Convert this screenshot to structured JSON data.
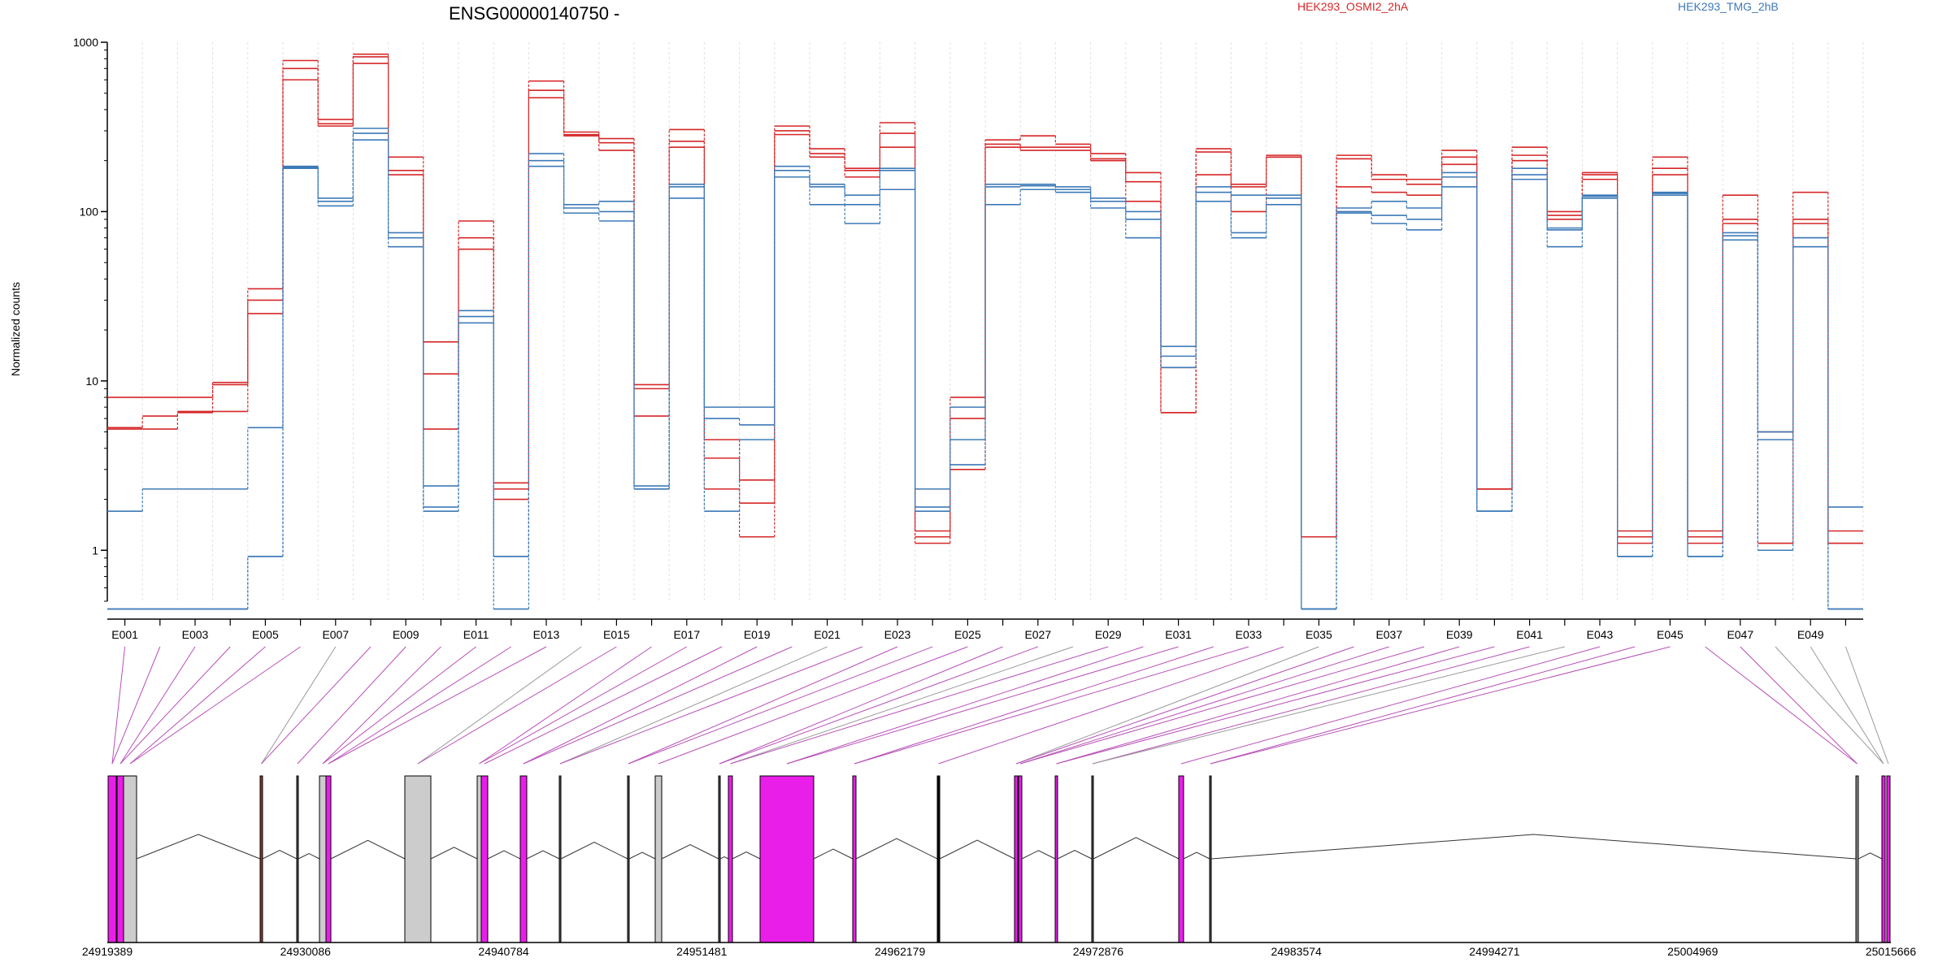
{
  "chart_data": {
    "type": "line",
    "title": "ENSG00000140750 -",
    "ylabel": "Normalized counts",
    "yscale": "log",
    "ylim": [
      0.5,
      1000
    ],
    "y_ticks": [
      1,
      10,
      100,
      1000
    ],
    "y_tick_labels": [
      "1",
      "10",
      "100",
      "1000"
    ],
    "x_ticks": [
      "E001",
      "E003",
      "E005",
      "E007",
      "E009",
      "E011",
      "E013",
      "E015",
      "E017",
      "E019",
      "E021",
      "E023",
      "E025",
      "E027",
      "E029",
      "E031",
      "E033",
      "E035",
      "E037",
      "E039",
      "E041",
      "E043",
      "E045",
      "E047",
      "E049"
    ],
    "legend": [
      {
        "label": "HEK293_OSMI2_2hA",
        "color": "#d62728"
      },
      {
        "label": "HEK293_TMG_2hB",
        "color": "#3d7ab8"
      }
    ],
    "exons": [
      "E001",
      "E002",
      "E003",
      "E004",
      "E005",
      "E006",
      "E007",
      "E008",
      "E009",
      "E010",
      "E011",
      "E012",
      "E013",
      "E014",
      "E015",
      "E016",
      "E017",
      "E018",
      "E019",
      "E020",
      "E021",
      "E022",
      "E023",
      "E024",
      "E025",
      "E026",
      "E027",
      "E028",
      "E029",
      "E030",
      "E031",
      "E032",
      "E033",
      "E034",
      "E035",
      "E036",
      "E037",
      "E038",
      "E039",
      "E040",
      "E041",
      "E042",
      "E043",
      "E044",
      "E045",
      "E046",
      "E047",
      "E048",
      "E049",
      "E050"
    ],
    "series": [
      {
        "group": "HEK293_OSMI2_2hA",
        "values": [
          8,
          8,
          8,
          9.8,
          35,
          780,
          350,
          850,
          210,
          17,
          88,
          2.3,
          590,
          295,
          270,
          9.5,
          305,
          2.3,
          1.2,
          320,
          235,
          180,
          335,
          1.1,
          8,
          265,
          280,
          250,
          220,
          170,
          6.5,
          235,
          145,
          215,
          1.2,
          215,
          165,
          155,
          230,
          2.3,
          240,
          100,
          170,
          1.1,
          210,
          1.1,
          125,
          1.1,
          130,
          1.1
        ]
      },
      {
        "group": "HEK293_OSMI2_2hA",
        "values": [
          5.2,
          5.2,
          6.5,
          9.5,
          30,
          700,
          330,
          820,
          175,
          11,
          70,
          2,
          520,
          285,
          255,
          9,
          260,
          3.5,
          2.6,
          300,
          220,
          175,
          290,
          1.3,
          6,
          250,
          240,
          240,
          205,
          150,
          6.5,
          225,
          140,
          210,
          1.2,
          205,
          155,
          145,
          210,
          2.3,
          215,
          95,
          165,
          1.3,
          180,
          1.3,
          90,
          5,
          90,
          1.3
        ]
      },
      {
        "group": "HEK293_OSMI2_2hA",
        "values": [
          5.3,
          6.2,
          6.6,
          6.6,
          25,
          600,
          320,
          750,
          165,
          5.2,
          60,
          2.5,
          470,
          280,
          230,
          6.2,
          240,
          4.5,
          1.9,
          285,
          210,
          160,
          240,
          1.2,
          3,
          240,
          230,
          230,
          200,
          115,
          12,
          165,
          100,
          210,
          1.2,
          140,
          130,
          125,
          190,
          2.3,
          200,
          90,
          155,
          1.2,
          165,
          1.2,
          85,
          1.1,
          85,
          1.1
        ]
      },
      {
        "group": "HEK293_TMG_2hB",
        "values": [
          1.7,
          2.3,
          2.3,
          2.3,
          5.3,
          185,
          120,
          310,
          75,
          2.4,
          26,
          0.92,
          220,
          110,
          115,
          2.4,
          145,
          7,
          7,
          185,
          145,
          125,
          180,
          2.3,
          7,
          145,
          145,
          140,
          120,
          100,
          16,
          140,
          125,
          125,
          0.45,
          105,
          115,
          105,
          170,
          1.7,
          180,
          80,
          125,
          0.92,
          130,
          0.92,
          75,
          5,
          70,
          1.8
        ]
      },
      {
        "group": "HEK293_TMG_2hB",
        "values": [
          0.45,
          0.45,
          0.45,
          0.45,
          0.92,
          182,
          115,
          290,
          70,
          1.8,
          24,
          0.92,
          200,
          105,
          100,
          2.3,
          140,
          6,
          5.5,
          175,
          140,
          110,
          175,
          1.8,
          4.5,
          140,
          142,
          135,
          115,
          90,
          14,
          130,
          75,
          120,
          0.45,
          100,
          95,
          90,
          160,
          1.7,
          165,
          78,
          123,
          0.92,
          128,
          0.92,
          72,
          4.5,
          70,
          0.45
        ]
      },
      {
        "group": "HEK293_TMG_2hB",
        "values": [
          0.45,
          0.45,
          0.45,
          0.45,
          0.92,
          180,
          108,
          265,
          62,
          1.7,
          22,
          0.45,
          185,
          98,
          88,
          2.3,
          120,
          1.7,
          4.5,
          160,
          110,
          85,
          135,
          1.7,
          3.2,
          110,
          135,
          130,
          105,
          70,
          12,
          115,
          70,
          110,
          0.45,
          98,
          85,
          78,
          140,
          1.7,
          155,
          62,
          120,
          0.92,
          125,
          0.92,
          68,
          1,
          62,
          0.45
        ]
      }
    ],
    "genome_ticks": [
      "24919389",
      "24930086",
      "24940784",
      "24951481",
      "24962179",
      "24972876",
      "24983574",
      "24994271",
      "25004969",
      "25015666"
    ]
  }
}
